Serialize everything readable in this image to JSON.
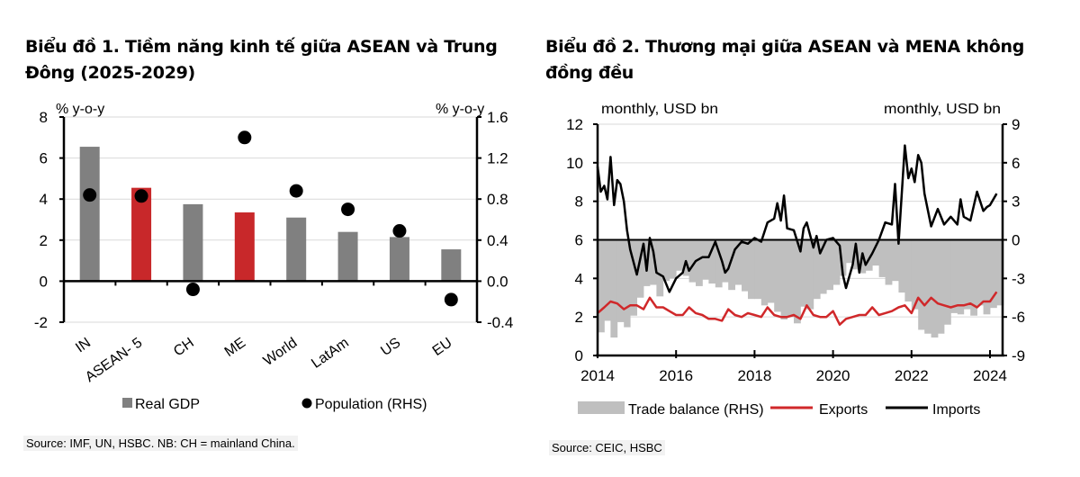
{
  "chart_data": [
    {
      "type": "bar",
      "title": "Biểu đồ 1. Tiềm năng kinh tế giữa ASEAN và Trung Đông (2025-2029)",
      "ylabel_left": "% y-o-y",
      "ylabel_right": "% y-o-y",
      "categories": [
        "IN",
        "ASEAN- 5",
        "CH",
        "ME",
        "World",
        "LatAm",
        "US",
        "EU"
      ],
      "ylim_left": [
        -2,
        8
      ],
      "yticks_left": [
        "8",
        "6",
        "4",
        "2",
        "0",
        "-2"
      ],
      "ytick_values_left": [
        8,
        6,
        4,
        2,
        0,
        -2
      ],
      "ylim_right": [
        -0.4,
        1.6
      ],
      "yticks_right": [
        "1.6",
        "1.2",
        "0.8",
        "0.4",
        "0.0",
        "-0.4"
      ],
      "ytick_values_right": [
        1.6,
        1.2,
        0.8,
        0.4,
        0.0,
        -0.4
      ],
      "series": [
        {
          "name": "Real GDP",
          "axis": "left",
          "kind": "bar",
          "values": [
            6.55,
            4.55,
            3.75,
            3.35,
            3.1,
            2.4,
            2.15,
            1.55
          ]
        },
        {
          "name": "Population (RHS)",
          "axis": "right",
          "kind": "scatter",
          "values": [
            0.84,
            0.83,
            -0.08,
            1.4,
            0.88,
            0.7,
            0.49,
            -0.18
          ]
        }
      ],
      "highlight_categories": [
        "ASEAN- 5",
        "ME"
      ],
      "grid": true,
      "legend": "bottom",
      "colors": {
        "bar": "#808080",
        "highlight": "#c8282a",
        "dot": "#000000",
        "grid": "#d9d9d9"
      },
      "source": "Source: IMF, UN, HSBC. NB: CH = mainland China."
    },
    {
      "type": "line",
      "title": "Biểu đồ 2. Thương mại giữa ASEAN và MENA không đồng đều",
      "ylabel_left": "monthly,  USD bn",
      "ylabel_right": "monthly,  USD bn",
      "xlim": [
        2014,
        2024.5
      ],
      "xticks": [
        "2014",
        "2016",
        "2018",
        "2020",
        "2022",
        "2024"
      ],
      "xtick_values": [
        2014,
        2016,
        2018,
        2020,
        2022,
        2024
      ],
      "ylim_left": [
        0,
        12
      ],
      "yticks_left": [
        "12",
        "10",
        "8",
        "6",
        "4",
        "2",
        "0"
      ],
      "ytick_values_left": [
        12,
        10,
        8,
        6,
        4,
        2,
        0
      ],
      "ylim_right": [
        -9,
        9
      ],
      "yticks_right": [
        "9",
        "6",
        "3",
        "0",
        "-3",
        "-6",
        "-9"
      ],
      "ytick_values_right": [
        9,
        6,
        3,
        0,
        -3,
        -6,
        -9
      ],
      "series": [
        {
          "name": "Trade balance (RHS)",
          "axis": "right",
          "kind": "area",
          "x": [
            2014.0,
            2014.17,
            2014.33,
            2014.5,
            2014.67,
            2014.83,
            2015.0,
            2015.17,
            2015.33,
            2015.5,
            2015.67,
            2015.83,
            2016.0,
            2016.17,
            2016.33,
            2016.5,
            2016.67,
            2016.83,
            2017.0,
            2017.17,
            2017.33,
            2017.5,
            2017.67,
            2017.83,
            2018.0,
            2018.17,
            2018.33,
            2018.5,
            2018.67,
            2018.83,
            2019.0,
            2019.17,
            2019.33,
            2019.5,
            2019.67,
            2019.83,
            2020.0,
            2020.17,
            2020.33,
            2020.5,
            2020.67,
            2020.83,
            2021.0,
            2021.17,
            2021.33,
            2021.5,
            2021.67,
            2021.83,
            2022.0,
            2022.17,
            2022.33,
            2022.5,
            2022.67,
            2022.83,
            2023.0,
            2023.17,
            2023.33,
            2023.5,
            2023.67,
            2023.83,
            2024.0,
            2024.17
          ],
          "values": [
            -7.2,
            -6.3,
            -7.6,
            -6.4,
            -6.8,
            -5.9,
            -4.5,
            -3.6,
            -3.5,
            -4.4,
            -3.2,
            -3.0,
            -2.4,
            -2.8,
            -3.3,
            -3.6,
            -3.1,
            -3.4,
            -3.7,
            -3.3,
            -3.9,
            -3.5,
            -4.0,
            -4.6,
            -4.6,
            -5.1,
            -4.9,
            -5.6,
            -6.2,
            -6.0,
            -6.5,
            -5.2,
            -5.4,
            -4.6,
            -4.2,
            -3.9,
            -3.5,
            -2.8,
            -1.8,
            -2.3,
            -2.6,
            -2.4,
            -2.0,
            -2.9,
            -3.5,
            -3.2,
            -4.1,
            -4.8,
            -5.4,
            -7.0,
            -7.3,
            -7.6,
            -7.3,
            -6.6,
            -5.7,
            -5.8,
            -5.4,
            -5.9,
            -5.1,
            -5.8,
            -5.3,
            -5.1
          ]
        },
        {
          "name": "Exports",
          "axis": "left",
          "kind": "line",
          "x": [
            2014.0,
            2014.17,
            2014.33,
            2014.5,
            2014.67,
            2014.83,
            2015.0,
            2015.17,
            2015.33,
            2015.5,
            2015.67,
            2015.83,
            2016.0,
            2016.17,
            2016.33,
            2016.5,
            2016.67,
            2016.83,
            2017.0,
            2017.17,
            2017.33,
            2017.5,
            2017.67,
            2017.83,
            2018.0,
            2018.17,
            2018.33,
            2018.5,
            2018.67,
            2018.83,
            2019.0,
            2019.17,
            2019.33,
            2019.5,
            2019.67,
            2019.83,
            2020.0,
            2020.17,
            2020.33,
            2020.5,
            2020.67,
            2020.83,
            2021.0,
            2021.17,
            2021.33,
            2021.5,
            2021.67,
            2021.83,
            2022.0,
            2022.17,
            2022.33,
            2022.5,
            2022.67,
            2022.83,
            2023.0,
            2023.17,
            2023.33,
            2023.5,
            2023.67,
            2023.83,
            2024.0,
            2024.17
          ],
          "values": [
            2.2,
            2.5,
            2.8,
            2.7,
            2.4,
            2.6,
            2.6,
            2.4,
            3.0,
            2.5,
            2.5,
            2.3,
            2.1,
            2.1,
            2.5,
            2.2,
            2.1,
            1.9,
            1.9,
            1.8,
            2.4,
            2.1,
            2.0,
            2.2,
            2.1,
            2.0,
            2.5,
            2.1,
            2.0,
            2.0,
            2.1,
            1.9,
            2.6,
            2.1,
            2.0,
            2.0,
            2.3,
            1.6,
            1.9,
            2.0,
            2.1,
            2.1,
            2.5,
            2.1,
            2.2,
            2.3,
            2.5,
            2.6,
            2.2,
            3.0,
            2.6,
            3.0,
            2.7,
            2.6,
            2.5,
            2.6,
            2.6,
            2.7,
            2.5,
            2.8,
            2.8,
            3.3
          ]
        },
        {
          "name": "Imports",
          "axis": "left",
          "kind": "line",
          "x": [
            2014.0,
            2014.08,
            2014.17,
            2014.25,
            2014.33,
            2014.42,
            2014.5,
            2014.58,
            2014.67,
            2014.75,
            2014.83,
            2015.0,
            2015.17,
            2015.25,
            2015.33,
            2015.42,
            2015.5,
            2015.67,
            2015.83,
            2016.0,
            2016.17,
            2016.25,
            2016.33,
            2016.5,
            2016.67,
            2016.83,
            2017.0,
            2017.17,
            2017.25,
            2017.33,
            2017.5,
            2017.67,
            2017.83,
            2018.0,
            2018.17,
            2018.33,
            2018.5,
            2018.58,
            2018.67,
            2018.75,
            2018.83,
            2019.0,
            2019.17,
            2019.25,
            2019.33,
            2019.5,
            2019.58,
            2019.67,
            2019.83,
            2020.0,
            2020.17,
            2020.25,
            2020.33,
            2020.5,
            2020.58,
            2020.67,
            2020.75,
            2020.83,
            2021.0,
            2021.17,
            2021.33,
            2021.5,
            2021.58,
            2021.67,
            2021.83,
            2021.92,
            2022.0,
            2022.08,
            2022.17,
            2022.25,
            2022.33,
            2022.5,
            2022.67,
            2022.83,
            2023.0,
            2023.17,
            2023.25,
            2023.33,
            2023.5,
            2023.67,
            2023.83,
            2023.92,
            2024.0,
            2024.17
          ],
          "values": [
            9.8,
            8.5,
            8.8,
            8.1,
            10.3,
            7.8,
            9.1,
            8.9,
            8.0,
            6.5,
            5.5,
            4.2,
            5.8,
            4.4,
            6.1,
            5.4,
            4.3,
            4.1,
            3.3,
            4.0,
            4.3,
            4.9,
            4.4,
            4.9,
            5.1,
            5.1,
            5.9,
            4.9,
            4.3,
            4.5,
            5.5,
            5.9,
            5.8,
            6.1,
            5.9,
            6.9,
            7.1,
            7.9,
            7.0,
            8.3,
            6.6,
            6.5,
            5.4,
            6.6,
            6.9,
            5.6,
            6.2,
            5.3,
            6.0,
            6.1,
            5.7,
            4.2,
            3.5,
            4.7,
            5.8,
            4.3,
            5.3,
            4.7,
            5.3,
            6.0,
            6.9,
            6.8,
            8.9,
            5.8,
            10.9,
            9.2,
            9.7,
            9.0,
            10.4,
            10.0,
            8.4,
            6.7,
            7.6,
            6.8,
            7.2,
            6.8,
            8.1,
            7.2,
            7.0,
            8.5,
            7.5,
            7.7,
            7.8,
            8.4
          ]
        }
      ],
      "grid": true,
      "legend": "bottom",
      "colors": {
        "balance": "#bfbfbf",
        "exports": "#d0282a",
        "imports": "#000000",
        "grid": "#d9d9d9"
      },
      "source": "Source: CEIC, HSBC"
    }
  ]
}
